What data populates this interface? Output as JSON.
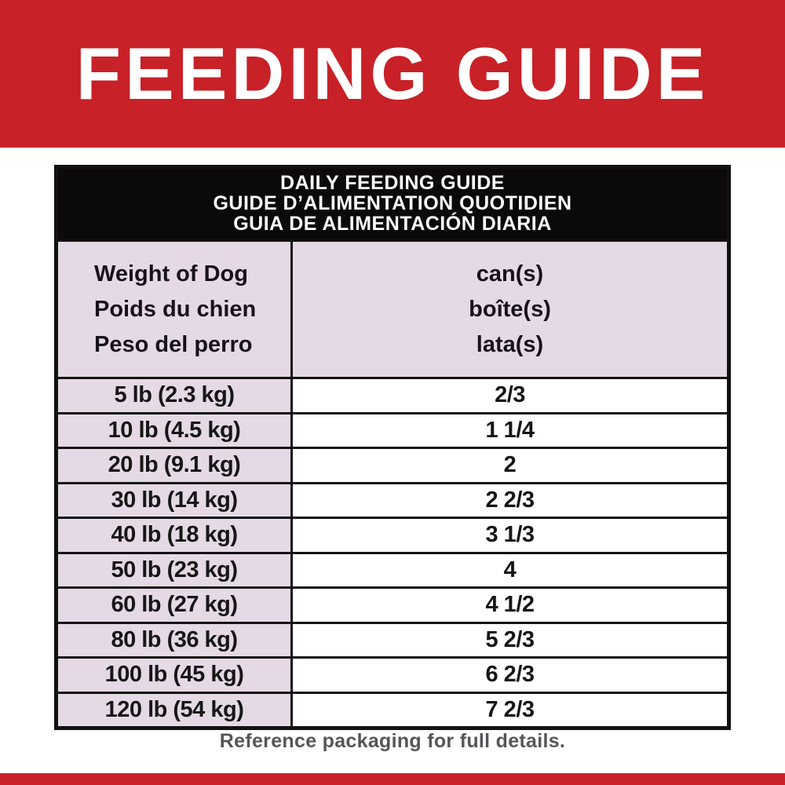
{
  "banner": {
    "title": "FEEDING GUIDE",
    "background_color": "#C82127",
    "text_color": "#FFFFFF"
  },
  "table": {
    "title_lines": [
      "DAILY FEEDING GUIDE",
      "GUIDE D’ALIMENTATION QUOTIDIEN",
      "GUIA DE ALIMENTACIÓN DIARIA"
    ],
    "header": {
      "weight_lines": [
        "Weight of Dog",
        "Poids du chien",
        "Peso del perro"
      ],
      "amount_lines": [
        "can(s)",
        "boîte(s)",
        "lata(s)"
      ]
    },
    "rows": [
      {
        "weight": "5 lb (2.3 kg)",
        "cans": "2/3"
      },
      {
        "weight": "10 lb (4.5 kg)",
        "cans": "1 1/4"
      },
      {
        "weight": "20 lb (9.1 kg)",
        "cans": "2"
      },
      {
        "weight": "30 lb (14 kg)",
        "cans": "2 2/3"
      },
      {
        "weight": "40 lb (18 kg)",
        "cans": "3 1/3"
      },
      {
        "weight": "50 lb (23 kg)",
        "cans": "4"
      },
      {
        "weight": "60 lb (27 kg)",
        "cans": "4 1/2"
      },
      {
        "weight": "80 lb (36 kg)",
        "cans": "5 2/3"
      },
      {
        "weight": "100 lb (45 kg)",
        "cans": "6 2/3"
      },
      {
        "weight": "120 lb (54 kg)",
        "cans": "7 2/3"
      }
    ],
    "colors": {
      "title_band_background": "#0B0909",
      "header_cell_background": "#E4D9E5",
      "border": "#121212"
    }
  },
  "footer": {
    "note": "Reference packaging for full details.",
    "text_color": "#55565A"
  },
  "bottom_strip": {
    "background_color": "#C82127"
  }
}
